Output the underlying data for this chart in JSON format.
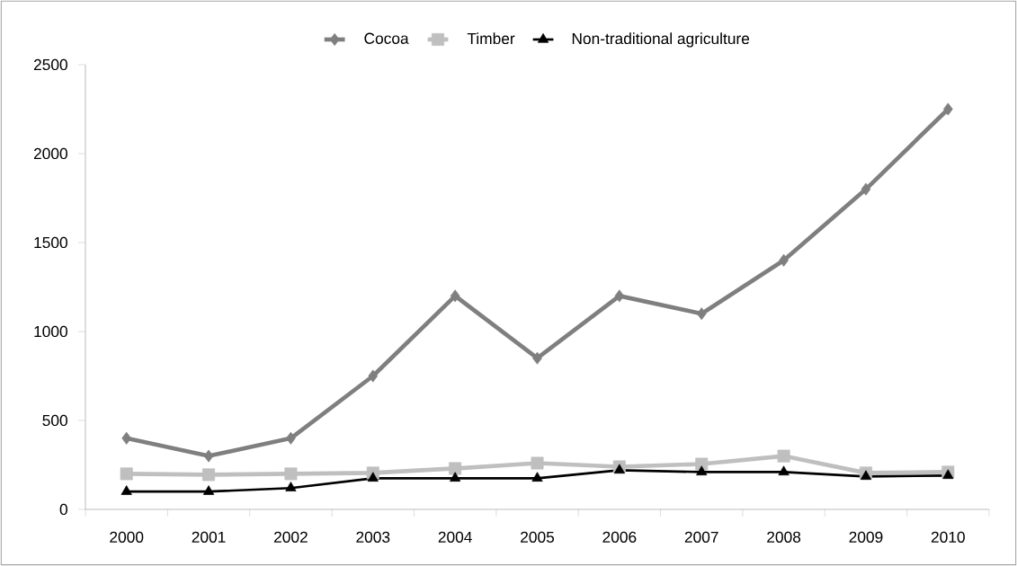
{
  "chart_data": {
    "type": "line",
    "categories": [
      "2000",
      "2001",
      "2002",
      "2003",
      "2004",
      "2005",
      "2006",
      "2007",
      "2008",
      "2009",
      "2010"
    ],
    "series": [
      {
        "name": "Cocoa",
        "color": "#7f7f7f",
        "marker": "diamond",
        "values": [
          400,
          300,
          400,
          750,
          1200,
          850,
          1200,
          1100,
          1400,
          1800,
          2250
        ]
      },
      {
        "name": "Timber",
        "color": "#bfbfbf",
        "marker": "square",
        "values": [
          200,
          195,
          200,
          205,
          230,
          260,
          240,
          255,
          300,
          205,
          210
        ]
      },
      {
        "name": "Non-traditional agriculture",
        "color": "#000000",
        "marker": "triangle",
        "values": [
          100,
          100,
          120,
          175,
          175,
          175,
          220,
          210,
          210,
          185,
          190
        ]
      }
    ],
    "ylim": [
      0,
      2500
    ],
    "yticks": [
      0,
      500,
      1000,
      1500,
      2000,
      2500
    ],
    "grid": false,
    "legend": "top"
  }
}
